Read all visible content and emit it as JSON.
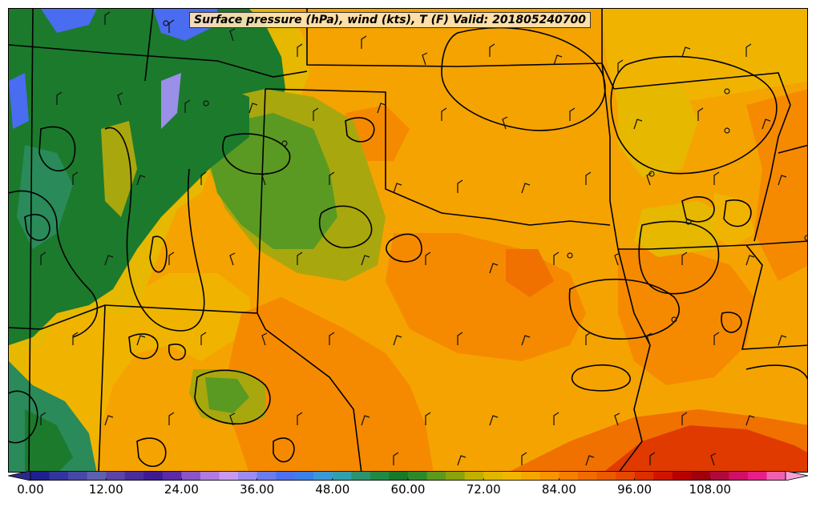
{
  "title": "Surface pressure (hPa), wind (kts), T (F) Valid: 201805240700",
  "colorbar": {
    "min": 0,
    "max": 120,
    "step": 3,
    "tick_values": [
      0,
      12,
      24,
      36,
      48,
      60,
      72,
      84,
      96,
      108
    ],
    "tick_labels": [
      "0.00",
      "12.00",
      "24.00",
      "36.00",
      "48.00",
      "60.00",
      "72.00",
      "84.00",
      "96.00",
      "108.00"
    ],
    "colors": [
      "#1f1f8f",
      "#34349f",
      "#4848a8",
      "#6060b0",
      "#5b44a6",
      "#4a2c9a",
      "#3d1a94",
      "#5a2aa8",
      "#8a55c8",
      "#b07be0",
      "#c79af0",
      "#9a8cf0",
      "#6b7cf0",
      "#4d70f0",
      "#3a80e8",
      "#3a98d8",
      "#2fa0b0",
      "#2a9470",
      "#1f8a44",
      "#157a2a",
      "#2a8a2a",
      "#5c9a1e",
      "#8aa40e",
      "#c0b000",
      "#e0b800",
      "#f2b600",
      "#f5a600",
      "#f79400",
      "#f58000",
      "#f06c00",
      "#ea5a00",
      "#e64800",
      "#dd2e00",
      "#d01400",
      "#b80000",
      "#a0000a",
      "#b00a3a",
      "#d01068",
      "#e81e8c",
      "#f060b0"
    ],
    "extend_min_color": "#2a2a88",
    "extend_max_color": "#f6a0d8"
  },
  "map_colors": {
    "base": "#f5a300",
    "orange": "#f58a00",
    "deep_orange": "#f07000",
    "red_orange": "#e03a00",
    "gold": "#f0b400",
    "yellow": "#e6b800",
    "olive": "#a9a70e",
    "light_green": "#5a9a22",
    "green": "#1c7a2c",
    "teal": "#2a8a5a",
    "blue": "#4a6cf0",
    "lavender": "#9a90e8"
  }
}
